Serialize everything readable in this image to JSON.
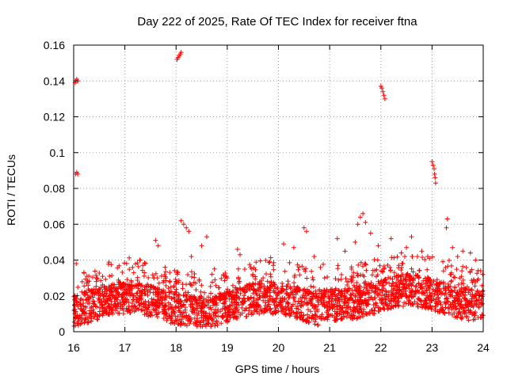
{
  "chart_data": {
    "type": "scatter",
    "title": "Day 222 of 2025, Rate Of TEC Index for receiver ftna",
    "xlabel": "GPS time / hours",
    "ylabel": "ROTI / TECUs",
    "xlim": [
      16,
      24
    ],
    "ylim": [
      0,
      0.16
    ],
    "xticks": [
      16,
      17,
      18,
      19,
      20,
      21,
      22,
      23,
      24
    ],
    "xtick_labels": [
      "16",
      "17",
      "18",
      "19",
      "20",
      "21",
      "22",
      "23",
      "24"
    ],
    "yticks": [
      0,
      0.02,
      0.04,
      0.06,
      0.08,
      0.1,
      0.12,
      0.14,
      0.16
    ],
    "ytick_labels": [
      "0",
      "0.02",
      "0.04",
      "0.06",
      "0.08",
      "0.1",
      "0.12",
      "0.14",
      "0.16"
    ],
    "grid": true,
    "marker": "+",
    "marker_color": "#ff0000",
    "series": [
      {
        "name": "ROTI",
        "points": [
          [
            16.04,
            0.14
          ],
          [
            16.06,
            0.141
          ],
          [
            16.08,
            0.14
          ],
          [
            16.03,
            0.139
          ],
          [
            16.04,
            0.088
          ],
          [
            16.06,
            0.089
          ],
          [
            16.08,
            0.088
          ],
          [
            18.02,
            0.152
          ],
          [
            18.04,
            0.153
          ],
          [
            18.06,
            0.154
          ],
          [
            18.08,
            0.155
          ],
          [
            18.1,
            0.156
          ],
          [
            22.0,
            0.137
          ],
          [
            22.02,
            0.136
          ],
          [
            22.04,
            0.134
          ],
          [
            22.06,
            0.132
          ],
          [
            22.08,
            0.13
          ],
          [
            23.0,
            0.095
          ],
          [
            23.02,
            0.093
          ],
          [
            23.04,
            0.091
          ],
          [
            23.05,
            0.088
          ],
          [
            23.06,
            0.086
          ],
          [
            23.07,
            0.083
          ],
          [
            18.1,
            0.062
          ],
          [
            18.15,
            0.06
          ],
          [
            18.2,
            0.058
          ],
          [
            18.25,
            0.056
          ],
          [
            21.6,
            0.064
          ],
          [
            21.65,
            0.066
          ],
          [
            21.7,
            0.061
          ],
          [
            21.55,
            0.06
          ],
          [
            20.5,
            0.058
          ],
          [
            20.55,
            0.056
          ],
          [
            23.3,
            0.063
          ],
          [
            23.28,
            0.058
          ],
          [
            16.05,
            0.038
          ],
          [
            16.2,
            0.033
          ],
          [
            16.45,
            0.03
          ],
          [
            16.7,
            0.031
          ],
          [
            16.9,
            0.025
          ],
          [
            17.1,
            0.02
          ],
          [
            17.3,
            0.04
          ],
          [
            17.35,
            0.037
          ],
          [
            17.6,
            0.051
          ],
          [
            17.65,
            0.048
          ],
          [
            17.8,
            0.03
          ],
          [
            18.3,
            0.042
          ],
          [
            18.5,
            0.048
          ],
          [
            18.6,
            0.053
          ],
          [
            18.75,
            0.035
          ],
          [
            19.0,
            0.03
          ],
          [
            19.2,
            0.046
          ],
          [
            19.25,
            0.043
          ],
          [
            19.5,
            0.027
          ],
          [
            19.7,
            0.03
          ],
          [
            19.9,
            0.037
          ],
          [
            20.1,
            0.049
          ],
          [
            20.3,
            0.047
          ],
          [
            20.4,
            0.036
          ],
          [
            20.7,
            0.042
          ],
          [
            20.9,
            0.03
          ],
          [
            21.15,
            0.052
          ],
          [
            21.3,
            0.045
          ],
          [
            21.5,
            0.05
          ],
          [
            21.8,
            0.055
          ],
          [
            21.95,
            0.048
          ],
          [
            22.2,
            0.052
          ],
          [
            22.4,
            0.044
          ],
          [
            22.5,
            0.047
          ],
          [
            22.6,
            0.053
          ],
          [
            22.8,
            0.045
          ],
          [
            22.95,
            0.041
          ],
          [
            23.4,
            0.047
          ],
          [
            23.5,
            0.042
          ],
          [
            23.6,
            0.045
          ],
          [
            23.75,
            0.044
          ],
          [
            23.85,
            0.04
          ],
          [
            23.95,
            0.034
          ]
        ]
      }
    ],
    "noise_band": {
      "description": "dense cluster of ROTI values between ~0.003 and ~0.035 spanning 16–24 h",
      "x_range": [
        16,
        24
      ],
      "y_range": [
        0.003,
        0.035
      ],
      "typical": 0.015
    }
  }
}
